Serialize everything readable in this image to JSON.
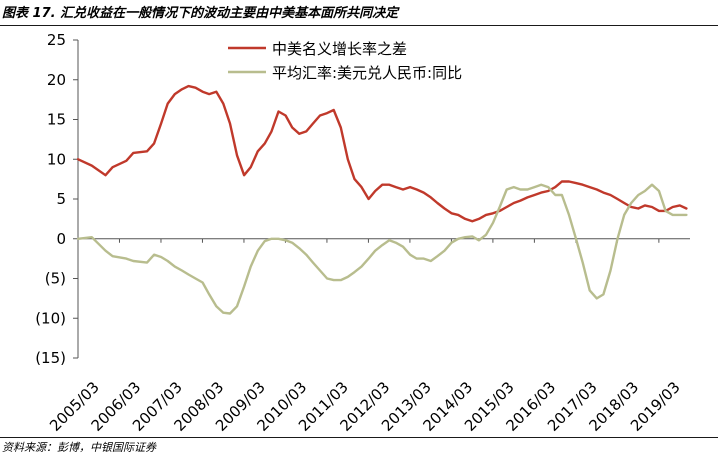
{
  "header": {
    "title": "图表 17. 汇兑收益在一般情况下的波动主要由中美基本面所共同决定"
  },
  "footer": {
    "source": "资料来源：彭博，中银国际证券"
  },
  "chart_data": {
    "type": "line",
    "title": "图表 17. 汇兑收益在一般情况下的波动主要由中美基本面所共同决定",
    "xlabel": "",
    "ylabel": "",
    "ylim": [
      -15,
      25
    ],
    "yticks": [
      25,
      20,
      15,
      10,
      5,
      0,
      -5,
      -10,
      -15
    ],
    "ytick_labels": [
      "25",
      "20",
      "15",
      "10",
      "5",
      "0",
      "(5)",
      "(10)",
      "(15)"
    ],
    "xlim": [
      2005.167,
      2019.917
    ],
    "xtick_labels": [
      "2005/03",
      "2006/03",
      "2007/03",
      "2008/03",
      "2009/03",
      "2010/03",
      "2011/03",
      "2012/03",
      "2013/03",
      "2014/03",
      "2015/03",
      "2016/03",
      "2017/03",
      "2018/03",
      "2019/03"
    ],
    "legend_position": "top-center",
    "grid": false,
    "series": [
      {
        "name": "中美名义增长率之差",
        "color": "#c0392b",
        "x": [
          2005.17,
          2005.5,
          2005.83,
          2006.0,
          2006.33,
          2006.5,
          2006.83,
          2007.0,
          2007.17,
          2007.33,
          2007.5,
          2007.67,
          2007.83,
          2008.0,
          2008.17,
          2008.33,
          2008.5,
          2008.67,
          2008.83,
          2009.0,
          2009.17,
          2009.33,
          2009.5,
          2009.67,
          2009.83,
          2010.0,
          2010.17,
          2010.33,
          2010.5,
          2010.67,
          2010.83,
          2011.0,
          2011.17,
          2011.33,
          2011.5,
          2011.67,
          2011.83,
          2012.0,
          2012.17,
          2012.33,
          2012.5,
          2012.67,
          2012.83,
          2013.0,
          2013.17,
          2013.33,
          2013.5,
          2013.67,
          2013.83,
          2014.0,
          2014.17,
          2014.33,
          2014.5,
          2014.67,
          2014.83,
          2015.0,
          2015.17,
          2015.33,
          2015.5,
          2015.67,
          2015.83,
          2016.0,
          2016.17,
          2016.33,
          2016.5,
          2016.67,
          2016.83,
          2017.0,
          2017.17,
          2017.33,
          2017.5,
          2017.67,
          2017.83,
          2018.0,
          2018.17,
          2018.33,
          2018.5,
          2018.67,
          2018.83,
          2019.0,
          2019.17,
          2019.33,
          2019.5,
          2019.67,
          2019.83
        ],
        "values": [
          10,
          9.2,
          8,
          9,
          9.8,
          10.8,
          11,
          12,
          14.5,
          17,
          18.2,
          18.8,
          19.2,
          19,
          18.5,
          18.2,
          18.5,
          17,
          14.5,
          10.5,
          8,
          9,
          11,
          12,
          13.5,
          16,
          15.5,
          14,
          13.2,
          13.5,
          14.5,
          15.5,
          15.8,
          16.2,
          14,
          10,
          7.5,
          6.5,
          5,
          6,
          6.8,
          6.8,
          6.5,
          6.2,
          6.5,
          6.2,
          5.8,
          5.2,
          4.5,
          3.8,
          3.2,
          3,
          2.5,
          2.2,
          2.5,
          3,
          3.2,
          3.5,
          4,
          4.5,
          4.8,
          5.2,
          5.5,
          5.8,
          6,
          6.5,
          7.2,
          7.2,
          7,
          6.8,
          6.5,
          6.2,
          5.8,
          5.5,
          5,
          4.5,
          4,
          3.8,
          4.2,
          4,
          3.5,
          3.5,
          4,
          4.2,
          3.8
        ]
      },
      {
        "name": "平均汇率:美元兑人民币:同比",
        "color": "#b8bd8e",
        "x": [
          2005.17,
          2005.5,
          2005.83,
          2006.0,
          2006.33,
          2006.5,
          2006.83,
          2007.0,
          2007.17,
          2007.33,
          2007.5,
          2007.67,
          2007.83,
          2008.0,
          2008.17,
          2008.33,
          2008.5,
          2008.67,
          2008.83,
          2009.0,
          2009.17,
          2009.33,
          2009.5,
          2009.67,
          2009.83,
          2010.0,
          2010.17,
          2010.33,
          2010.5,
          2010.67,
          2010.83,
          2011.0,
          2011.17,
          2011.33,
          2011.5,
          2011.67,
          2011.83,
          2012.0,
          2012.17,
          2012.33,
          2012.5,
          2012.67,
          2012.83,
          2013.0,
          2013.17,
          2013.33,
          2013.5,
          2013.67,
          2013.83,
          2014.0,
          2014.17,
          2014.33,
          2014.5,
          2014.67,
          2014.83,
          2015.0,
          2015.17,
          2015.33,
          2015.5,
          2015.67,
          2015.83,
          2016.0,
          2016.17,
          2016.33,
          2016.5,
          2016.67,
          2016.83,
          2017.0,
          2017.17,
          2017.33,
          2017.5,
          2017.67,
          2017.83,
          2018.0,
          2018.17,
          2018.33,
          2018.5,
          2018.67,
          2018.83,
          2019.0,
          2019.17,
          2019.33,
          2019.5,
          2019.67,
          2019.83
        ],
        "values": [
          0,
          0.2,
          -1.5,
          -2.2,
          -2.5,
          -2.8,
          -3,
          -2,
          -2.3,
          -2.8,
          -3.5,
          -4,
          -4.5,
          -5,
          -5.5,
          -7,
          -8.5,
          -9.3,
          -9.4,
          -8.5,
          -6,
          -3.5,
          -1.5,
          -0.3,
          0,
          0,
          -0.2,
          -0.5,
          -1.2,
          -2,
          -3,
          -4,
          -5,
          -5.2,
          -5.2,
          -4.8,
          -4.2,
          -3.5,
          -2.5,
          -1.5,
          -0.8,
          -0.2,
          -0.5,
          -1,
          -2,
          -2.5,
          -2.5,
          -2.8,
          -2.2,
          -1.5,
          -0.5,
          0,
          0.2,
          0.3,
          -0.2,
          0.5,
          2,
          4,
          6.2,
          6.5,
          6.2,
          6.2,
          6.5,
          6.8,
          6.5,
          5.5,
          5.5,
          3,
          0,
          -3,
          -6.5,
          -7.5,
          -7,
          -4,
          0,
          3,
          4.5,
          5.5,
          6,
          6.8,
          6,
          3.5,
          3,
          3,
          3
        ]
      }
    ]
  }
}
